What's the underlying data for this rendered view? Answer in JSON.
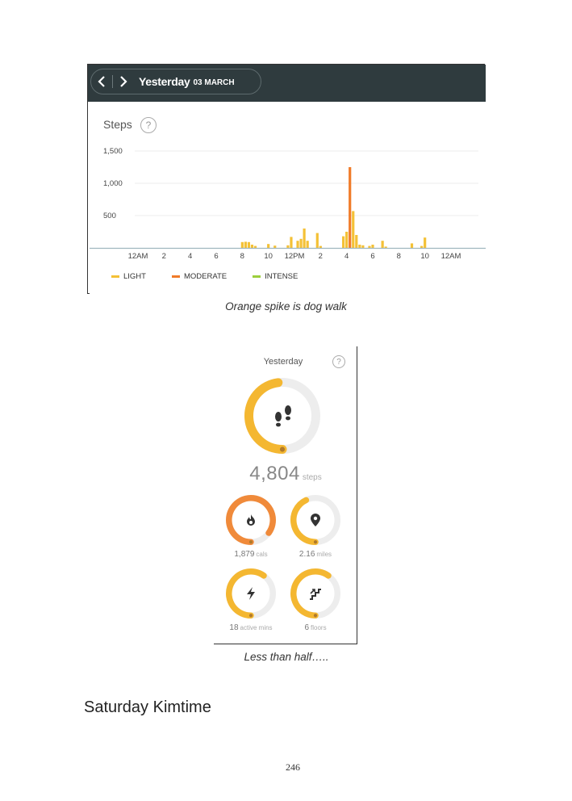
{
  "steps_screenshot": {
    "nav": {
      "day": "Yesterday",
      "date": "03 MARCH"
    },
    "title": "Steps",
    "help": "?"
  },
  "chart_data": {
    "type": "bar",
    "ylabel": "",
    "xlabel": "",
    "ylim": [
      0,
      1500
    ],
    "y_ticks": [
      "1,500",
      "1,000",
      "500"
    ],
    "y_tick_values": [
      1500,
      1000,
      500
    ],
    "x_ticks": [
      "12AM",
      "2",
      "4",
      "6",
      "8",
      "10",
      "12PM",
      "2",
      "4",
      "6",
      "8",
      "10",
      "12AM"
    ],
    "x_tick_hours": [
      0,
      2,
      4,
      6,
      8,
      10,
      12,
      14,
      16,
      18,
      20,
      22,
      24
    ],
    "grid": true,
    "legend": [
      {
        "name": "LIGHT",
        "color": "#f4c136"
      },
      {
        "name": "MODERATE",
        "color": "#f07b29"
      },
      {
        "name": "INTENSE",
        "color": "#9ccf3c"
      }
    ],
    "legend_position": "bottom-left",
    "bars": [
      {
        "hour": 8.0,
        "value": 90,
        "level": "LIGHT"
      },
      {
        "hour": 8.25,
        "value": 95,
        "level": "LIGHT"
      },
      {
        "hour": 8.5,
        "value": 90,
        "level": "LIGHT"
      },
      {
        "hour": 8.75,
        "value": 50,
        "level": "LIGHT"
      },
      {
        "hour": 9.0,
        "value": 30,
        "level": "LIGHT"
      },
      {
        "hour": 10.0,
        "value": 60,
        "level": "LIGHT"
      },
      {
        "hour": 10.5,
        "value": 35,
        "level": "LIGHT"
      },
      {
        "hour": 11.5,
        "value": 40,
        "level": "LIGHT"
      },
      {
        "hour": 11.75,
        "value": 170,
        "level": "LIGHT"
      },
      {
        "hour": 12.25,
        "value": 110,
        "level": "LIGHT"
      },
      {
        "hour": 12.5,
        "value": 140,
        "level": "LIGHT"
      },
      {
        "hour": 12.75,
        "value": 300,
        "level": "LIGHT"
      },
      {
        "hour": 13.0,
        "value": 110,
        "level": "LIGHT"
      },
      {
        "hour": 13.75,
        "value": 230,
        "level": "LIGHT"
      },
      {
        "hour": 14.0,
        "value": 30,
        "level": "LIGHT"
      },
      {
        "hour": 15.75,
        "value": 180,
        "level": "LIGHT"
      },
      {
        "hour": 16.0,
        "value": 250,
        "level": "LIGHT"
      },
      {
        "hour": 16.25,
        "value": 1250,
        "level": "MODERATE"
      },
      {
        "hour": 16.5,
        "value": 570,
        "level": "LIGHT"
      },
      {
        "hour": 16.75,
        "value": 200,
        "level": "LIGHT"
      },
      {
        "hour": 17.0,
        "value": 50,
        "level": "LIGHT"
      },
      {
        "hour": 17.25,
        "value": 40,
        "level": "LIGHT"
      },
      {
        "hour": 17.75,
        "value": 30,
        "level": "LIGHT"
      },
      {
        "hour": 18.0,
        "value": 50,
        "level": "LIGHT"
      },
      {
        "hour": 18.75,
        "value": 110,
        "level": "LIGHT"
      },
      {
        "hour": 19.0,
        "value": 20,
        "level": "LIGHT"
      },
      {
        "hour": 21.0,
        "value": 70,
        "level": "LIGHT"
      },
      {
        "hour": 21.75,
        "value": 30,
        "level": "LIGHT"
      },
      {
        "hour": 22.0,
        "value": 160,
        "level": "LIGHT"
      }
    ]
  },
  "captions": {
    "first": "Orange spike is dog walk",
    "second": "Less than half….."
  },
  "summary": {
    "title": "Yesterday",
    "help": "?",
    "steps": {
      "value": "4,804",
      "unit": "steps",
      "progress": 0.48,
      "color": "#f4b731"
    },
    "stats": [
      {
        "value": "1,879",
        "unit": "cals",
        "icon": "flame-icon",
        "progress": 0.85,
        "color": "#f08a3a"
      },
      {
        "value": "2.16",
        "unit": "miles",
        "icon": "location-pin-icon",
        "progress": 0.43,
        "color": "#f4b731"
      },
      {
        "value": "18",
        "unit": "active mins",
        "icon": "lightning-icon",
        "progress": 0.6,
        "color": "#f4b731"
      },
      {
        "value": "6",
        "unit": "floors",
        "icon": "stairs-icon",
        "progress": 0.6,
        "color": "#f4b731"
      }
    ]
  },
  "heading": "Saturday Kimtime",
  "page_number": "246"
}
